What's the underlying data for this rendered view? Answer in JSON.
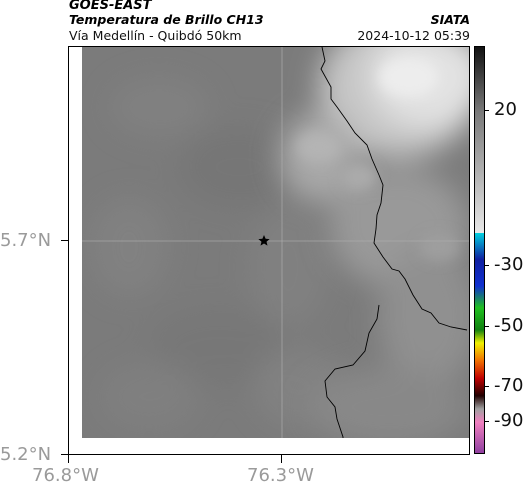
{
  "header": {
    "satellite": "GOES-EAST",
    "product": "Temperatura de Brillo CH13",
    "organization": "SIATA",
    "location": "Vía Medellín - Quibdó 50km",
    "datetime": "2024-10-12 05:39"
  },
  "map": {
    "y_ticks": [
      "5.7°N",
      "5.2°N"
    ],
    "x_ticks": [
      "76.8°W",
      "76.3°W"
    ],
    "marker_icon": "star-icon",
    "colors": {
      "background_gray": "#7b7b7b",
      "cloud_light": "#d8d8d8",
      "border_line": "#000000",
      "gridline": "#b0b0b0"
    }
  },
  "colorbar": {
    "labels": [
      "20",
      "-30",
      "-50",
      "-70",
      "-90"
    ],
    "colors": {
      "top": "#111111",
      "gray_mid": "#7a7a7a",
      "gray_light": "#e8e8e8",
      "cyan": "#00d0e0",
      "blue": "#1020a0",
      "green": "#20c020",
      "yellow": "#f0f000",
      "orange": "#f07000",
      "red": "#c00000",
      "dark": "#200000",
      "pink": "#f080c0",
      "purple": "#9040a0"
    }
  }
}
